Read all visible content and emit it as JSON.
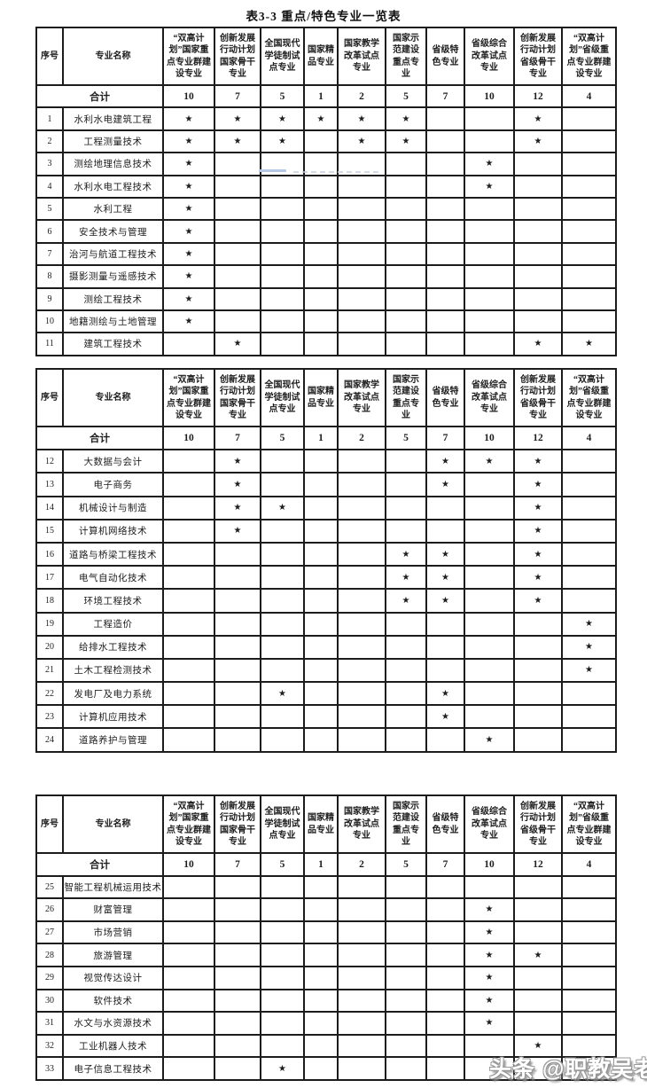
{
  "page": {
    "title": "表3-3  重点/特色专业一览表"
  },
  "watermark": {
    "text": "头条 @职教吴老师"
  },
  "colors": {
    "border": "#1c1c1c",
    "text": "#1d1d1d",
    "artifact_blue": "#b7c8e6",
    "watermark_fill": "#ffffff",
    "watermark_outline": "#9a9a9a"
  },
  "table": {
    "serial_header": "序号",
    "name_header": "专业名称",
    "columns": [
      "“双高计划”国家重点专业群建设专业",
      "创新发展行动计划国家骨干专业",
      "全国现代学徒制试点专业",
      "国家精品专业",
      "国家教学改革试点专业",
      "国家示范建设重点专业",
      "省级特色专业",
      "省级综合改革试点专业",
      "创新发展行动计划省级骨干专业",
      "“双高计划”省级重点专业群建设专业"
    ],
    "totals_label": "合计",
    "totals": [
      "10",
      "7",
      "5",
      "1",
      "2",
      "5",
      "7",
      "10",
      "12",
      "4"
    ],
    "star": "★",
    "sections": [
      {
        "rows": [
          {
            "num": "1",
            "name": "水利水电建筑工程",
            "stars": [
              1,
              1,
              1,
              1,
              1,
              1,
              0,
              0,
              1,
              0
            ]
          },
          {
            "num": "2",
            "name": "工程测量技术",
            "stars": [
              1,
              1,
              1,
              0,
              1,
              1,
              0,
              0,
              1,
              0
            ]
          },
          {
            "num": "3",
            "name": "测绘地理信息技术",
            "stars": [
              1,
              0,
              0,
              0,
              0,
              0,
              0,
              1,
              0,
              0
            ]
          },
          {
            "num": "4",
            "name": "水利水电工程技术",
            "stars": [
              1,
              0,
              0,
              0,
              0,
              0,
              0,
              1,
              0,
              0
            ]
          },
          {
            "num": "5",
            "name": "水利工程",
            "stars": [
              1,
              0,
              0,
              0,
              0,
              0,
              0,
              0,
              0,
              0
            ]
          },
          {
            "num": "6",
            "name": "安全技术与管理",
            "stars": [
              1,
              0,
              0,
              0,
              0,
              0,
              0,
              0,
              0,
              0
            ]
          },
          {
            "num": "7",
            "name": "治河与航道工程技术",
            "stars": [
              1,
              0,
              0,
              0,
              0,
              0,
              0,
              0,
              0,
              0
            ]
          },
          {
            "num": "8",
            "name": "摄影测量与遥感技术",
            "stars": [
              1,
              0,
              0,
              0,
              0,
              0,
              0,
              0,
              0,
              0
            ]
          },
          {
            "num": "9",
            "name": "测绘工程技术",
            "stars": [
              1,
              0,
              0,
              0,
              0,
              0,
              0,
              0,
              0,
              0
            ]
          },
          {
            "num": "10",
            "name": "地籍测绘与土地管理",
            "stars": [
              1,
              0,
              0,
              0,
              0,
              0,
              0,
              0,
              0,
              0
            ]
          },
          {
            "num": "11",
            "name": "建筑工程技术",
            "stars": [
              0,
              1,
              0,
              0,
              0,
              0,
              0,
              0,
              1,
              1
            ]
          }
        ]
      },
      {
        "rows": [
          {
            "num": "12",
            "name": "大数据与会计",
            "stars": [
              0,
              1,
              0,
              0,
              0,
              0,
              1,
              1,
              1,
              0
            ]
          },
          {
            "num": "13",
            "name": "电子商务",
            "stars": [
              0,
              1,
              0,
              0,
              0,
              0,
              1,
              0,
              1,
              0
            ]
          },
          {
            "num": "14",
            "name": "机械设计与制造",
            "stars": [
              0,
              1,
              1,
              0,
              0,
              0,
              0,
              0,
              1,
              0
            ]
          },
          {
            "num": "15",
            "name": "计算机网络技术",
            "stars": [
              0,
              1,
              0,
              0,
              0,
              0,
              0,
              0,
              1,
              0
            ]
          },
          {
            "num": "16",
            "name": "道路与桥梁工程技术",
            "stars": [
              0,
              0,
              0,
              0,
              0,
              1,
              1,
              0,
              1,
              0
            ]
          },
          {
            "num": "17",
            "name": "电气自动化技术",
            "stars": [
              0,
              0,
              0,
              0,
              0,
              1,
              1,
              0,
              1,
              0
            ]
          },
          {
            "num": "18",
            "name": "环境工程技术",
            "stars": [
              0,
              0,
              0,
              0,
              0,
              1,
              1,
              0,
              1,
              0
            ]
          },
          {
            "num": "19",
            "name": "工程造价",
            "stars": [
              0,
              0,
              0,
              0,
              0,
              0,
              0,
              0,
              0,
              1
            ]
          },
          {
            "num": "20",
            "name": "给排水工程技术",
            "stars": [
              0,
              0,
              0,
              0,
              0,
              0,
              0,
              0,
              0,
              1
            ]
          },
          {
            "num": "21",
            "name": "土木工程检测技术",
            "stars": [
              0,
              0,
              0,
              0,
              0,
              0,
              0,
              0,
              0,
              1
            ]
          },
          {
            "num": "22",
            "name": "发电厂及电力系统",
            "stars": [
              0,
              0,
              1,
              0,
              0,
              0,
              1,
              0,
              0,
              0
            ]
          },
          {
            "num": "23",
            "name": "计算机应用技术",
            "stars": [
              0,
              0,
              0,
              0,
              0,
              0,
              1,
              0,
              0,
              0
            ]
          },
          {
            "num": "24",
            "name": "道路养护与管理",
            "stars": [
              0,
              0,
              0,
              0,
              0,
              0,
              0,
              1,
              0,
              0
            ]
          }
        ]
      },
      {
        "rows": [
          {
            "num": "25",
            "name": "智能工程机械运用技术",
            "stars": [
              0,
              0,
              0,
              0,
              0,
              0,
              0,
              0,
              0,
              0
            ]
          },
          {
            "num": "26",
            "name": "财富管理",
            "stars": [
              0,
              0,
              0,
              0,
              0,
              0,
              0,
              1,
              0,
              0
            ]
          },
          {
            "num": "27",
            "name": "市场营销",
            "stars": [
              0,
              0,
              0,
              0,
              0,
              0,
              0,
              1,
              0,
              0
            ]
          },
          {
            "num": "28",
            "name": "旅游管理",
            "stars": [
              0,
              0,
              0,
              0,
              0,
              0,
              0,
              1,
              1,
              0
            ]
          },
          {
            "num": "29",
            "name": "视觉传达设计",
            "stars": [
              0,
              0,
              0,
              0,
              0,
              0,
              0,
              1,
              0,
              0
            ]
          },
          {
            "num": "30",
            "name": "软件技术",
            "stars": [
              0,
              0,
              0,
              0,
              0,
              0,
              0,
              1,
              0,
              0
            ]
          },
          {
            "num": "31",
            "name": "水文与水资源技术",
            "stars": [
              0,
              0,
              0,
              0,
              0,
              0,
              0,
              1,
              0,
              0
            ]
          },
          {
            "num": "32",
            "name": "工业机器人技术",
            "stars": [
              0,
              0,
              0,
              0,
              0,
              0,
              0,
              0,
              1,
              0
            ]
          },
          {
            "num": "33",
            "name": "电子信息工程技术",
            "stars": [
              0,
              0,
              1,
              0,
              0,
              0,
              0,
              0,
              0,
              0
            ]
          }
        ]
      }
    ]
  }
}
